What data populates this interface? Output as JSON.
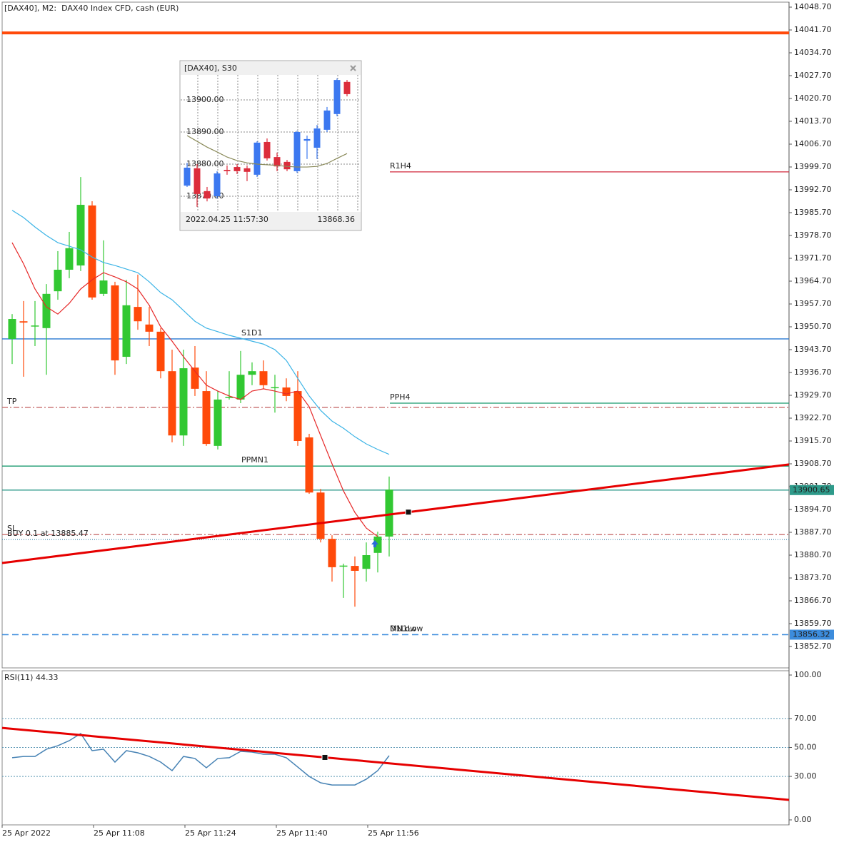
{
  "chart_data": [
    {
      "type": "candlestick",
      "title": "[DAX40], M2:  DAX40 Index CFD, cash (EUR)",
      "categories": [
        "25 Apr 2022",
        null,
        null,
        null,
        null,
        null,
        null,
        null,
        "25 Apr 11:08",
        null,
        null,
        null,
        null,
        null,
        null,
        null,
        "25 Apr 11:24",
        null,
        null,
        null,
        null,
        null,
        null,
        null,
        "25 Apr 11:40",
        null,
        null,
        null,
        null,
        null,
        null,
        null,
        "25 Apr 11:56",
        null
      ],
      "ohlc": {
        "open": [
          13947.0,
          13952.4,
          13950.9,
          13950.3,
          13961.6,
          13968.2,
          13969.5,
          13987.9,
          13960.8,
          13963.4,
          13941.5,
          13956.8,
          13951.4,
          13949.2,
          13937.1,
          13917.4,
          13938.2,
          13931.0,
          13914.2,
          13929.0,
          13928.4,
          13936.0,
          13937.1,
          13932.1,
          13932.1,
          13931.0,
          13916.8,
          13899.9,
          13885.7,
          13877.4,
          13877.4,
          13876.5,
          13881.4,
          13886.4
        ],
        "high": [
          13954.6,
          13958.6,
          13958.6,
          13963.8,
          13973.9,
          13979.8,
          13996.6,
          13989.2,
          13977.2,
          13964.5,
          13965.1,
          13966.7,
          13956.8,
          13950.3,
          13943.7,
          13943.7,
          13944.8,
          13937.1,
          13931.0,
          13937.1,
          13943.3,
          13939.8,
          13940.4,
          13936.0,
          13934.9,
          13937.1,
          13917.9,
          13901.0,
          13886.8,
          13878.1,
          13880.3,
          13884.6,
          13887.9,
          13904.8
        ],
        "low": [
          13939.3,
          13935.4,
          13944.8,
          13936.0,
          13959.0,
          13965.6,
          13967.8,
          13959.0,
          13960.1,
          13936.0,
          13939.3,
          13949.8,
          13944.8,
          13934.9,
          13915.3,
          13914.2,
          13929.5,
          13914.2,
          13913.1,
          13928.4,
          13927.3,
          13932.8,
          13931.7,
          13924.4,
          13927.9,
          13914.2,
          13899.5,
          13884.6,
          13872.6,
          13867.6,
          13864.9,
          13872.6,
          13875.4,
          13880.3
        ],
        "close": [
          13953.1,
          13952.0,
          13951.1,
          13960.8,
          13968.2,
          13974.8,
          13988.1,
          13959.7,
          13964.9,
          13940.4,
          13957.3,
          13952.4,
          13949.2,
          13937.1,
          13917.4,
          13938.0,
          13931.7,
          13914.8,
          13928.4,
          13929.2,
          13936.0,
          13937.1,
          13932.8,
          13932.2,
          13929.5,
          13915.7,
          13899.9,
          13885.7,
          13877.0,
          13877.5,
          13875.9,
          13880.7,
          13886.4,
          13900.8
        ],
        "up_color": "#32c832",
        "down_color": "#ff4a0a"
      },
      "lines": [
        {
          "color": "#e62828",
          "values": [
            13976.5,
            13970.0,
            13962.3,
            13956.8,
            13954.6,
            13957.9,
            13962.3,
            13965.1,
            13967.3,
            13966.0,
            13964.5,
            13962.3,
            13957.3,
            13950.7,
            13946.3,
            13941.5,
            13937.1,
            13932.8,
            13931.0,
            13929.5,
            13928.4,
            13931.0,
            13931.7,
            13931.0,
            13930.1,
            13931.0,
            13926.2,
            13917.4,
            13908.7,
            13900.4,
            13893.8,
            13889.0,
            13886.4,
            null
          ]
        },
        {
          "color": "#3cb4e6",
          "values": [
            13986.4,
            13984.2,
            13981.3,
            13978.7,
            13976.5,
            13975.4,
            13974.3,
            13972.1,
            13970.4,
            13969.5,
            13968.4,
            13967.3,
            13964.5,
            13961.2,
            13959.0,
            13955.7,
            13952.4,
            13950.3,
            13949.2,
            13948.1,
            13947.2,
            13946.3,
            13945.4,
            13943.7,
            13940.4,
            13934.9,
            13929.5,
            13925.1,
            13921.8,
            13919.6,
            13917.0,
            13914.8,
            13913.1,
            13911.6
          ]
        }
      ],
      "levels": [
        {
          "value": 14040.8,
          "color": "#ff4a0a",
          "width": 4,
          "style": "solid"
        },
        {
          "label": "R1H4",
          "value": 13998.2,
          "color": "#d2283c",
          "style": "solid",
          "extent": "right"
        },
        {
          "label": "S1D1",
          "value": 13947.0,
          "color": "#2878d2",
          "style": "solid"
        },
        {
          "label": "PPH4",
          "value": 13927.3,
          "color": "#199a6e",
          "style": "solid",
          "extent": "right"
        },
        {
          "label": "TP",
          "value": 13926.0,
          "color": "#c86e6e",
          "style": "dashdot"
        },
        {
          "label": "PPMN1",
          "value": 13908.0,
          "color": "#199a6e",
          "style": "solid"
        },
        {
          "label": "SL",
          "value": 13887.0,
          "color": "#c86e6e",
          "style": "dashdot"
        },
        {
          "label": "BUY 0.1 at 13885.47",
          "value": 13885.47,
          "color": "#5a96b4",
          "style": "dotted"
        },
        {
          "value": 13900.65,
          "color": "#2e9a8a",
          "style": "solid",
          "tag": true
        },
        {
          "label": "D1Low",
          "value": 13856.32,
          "color": "#3c8cdc",
          "style": "dashed",
          "tag": true
        },
        {
          "label": "MN1Low",
          "value": 13856.32,
          "color": "#3c8cdc",
          "style": "dashed"
        }
      ],
      "trendline": {
        "values": [
          13878.3,
          13908.5
        ],
        "color": "#e60000"
      },
      "ylim": [
        13846.14,
        14050.23
      ],
      "yticks": [
        {
          "value": 14048.7,
          "label": "14048.70"
        },
        {
          "value": 14041.7,
          "label": "14041.70"
        },
        {
          "value": 14034.7,
          "label": "14034.70"
        },
        {
          "value": 14027.7,
          "label": "14027.70"
        },
        {
          "value": 14020.7,
          "label": "14020.70"
        },
        {
          "value": 14013.7,
          "label": "14013.70"
        },
        {
          "value": 14006.7,
          "label": "14006.70"
        },
        {
          "value": 13999.7,
          "label": "13999.70"
        },
        {
          "value": 13992.7,
          "label": "13992.70"
        },
        {
          "value": 13985.7,
          "label": "13985.70"
        },
        {
          "value": 13978.7,
          "label": "13978.70"
        },
        {
          "value": 13971.7,
          "label": "13971.70"
        },
        {
          "value": 13964.7,
          "label": "13964.70"
        },
        {
          "value": 13957.7,
          "label": "13957.70"
        },
        {
          "value": 13950.7,
          "label": "13950.70"
        },
        {
          "value": 13943.7,
          "label": "13943.70"
        },
        {
          "value": 13936.7,
          "label": "13936.70"
        },
        {
          "value": 13929.7,
          "label": "13929.70"
        },
        {
          "value": 13922.7,
          "label": "13922.70"
        },
        {
          "value": 13915.7,
          "label": "13915.70"
        },
        {
          "value": 13908.7,
          "label": "13908.70"
        },
        {
          "value": 13901.7,
          "label": "13901.70"
        },
        {
          "value": 13894.7,
          "label": "13894.70"
        },
        {
          "value": 13887.7,
          "label": "13887.70"
        },
        {
          "value": 13880.7,
          "label": "13880.70"
        },
        {
          "value": 13873.7,
          "label": "13873.70"
        },
        {
          "value": 13866.7,
          "label": "13866.70"
        },
        {
          "value": 13859.7,
          "label": "13859.70"
        },
        {
          "value": 13852.7,
          "label": "13852.70"
        }
      ]
    },
    {
      "type": "line",
      "title": "RSI(11) 44.33",
      "values": [
        42.9,
        43.8,
        43.8,
        48.8,
        51.2,
        54.7,
        59.6,
        47.8,
        48.8,
        39.9,
        47.8,
        46.3,
        43.8,
        39.9,
        34.0,
        43.8,
        42.4,
        36.0,
        42.4,
        42.9,
        47.3,
        46.8,
        45.3,
        45.3,
        42.9,
        36.5,
        30.0,
        25.6,
        24.1,
        24.1,
        24.1,
        28.1,
        34.0,
        44.33
      ],
      "color": "#4682b4",
      "levels": [
        70,
        50,
        30
      ],
      "trendline": {
        "values": [
          63.5,
          13.8
        ],
        "color": "#e60000"
      },
      "ylim": [
        -3.45,
        102.96
      ],
      "yticks": [
        {
          "value": 100,
          "label": "100.00"
        },
        {
          "value": 70,
          "label": "70.00"
        },
        {
          "value": 50,
          "label": "50.00"
        },
        {
          "value": 30,
          "label": "30.00"
        },
        {
          "value": 0,
          "label": "0.00"
        }
      ]
    },
    {
      "type": "candlestick",
      "title": "[DAX40], S30",
      "ohlc": {
        "open": [
          13873.3,
          13878.7,
          13871.6,
          13870.0,
          13878.2,
          13879.1,
          13878.7,
          13876.7,
          13886.9,
          13882.2,
          13880.7,
          13877.8,
          13887.3,
          13885.1,
          13890.7,
          13895.6,
          13905.6
        ],
        "high": [
          13880.4,
          13880.0,
          13872.9,
          13877.8,
          13879.6,
          13880.0,
          13879.6,
          13887.1,
          13888.0,
          13883.6,
          13881.3,
          13890.4,
          13888.9,
          13892.2,
          13897.8,
          13906.7,
          13906.2
        ],
        "low": [
          13872.9,
          13866.7,
          13868.4,
          13869.3,
          13876.7,
          13876.9,
          13874.7,
          13876.0,
          13881.1,
          13877.8,
          13877.8,
          13877.3,
          13881.6,
          13881.6,
          13890.0,
          13894.9,
          13901.1
        ],
        "close": [
          13878.9,
          13870.7,
          13869.3,
          13877.1,
          13877.8,
          13877.8,
          13877.6,
          13886.7,
          13881.8,
          13879.3,
          13878.4,
          13890.0,
          13887.8,
          13891.1,
          13896.7,
          13906.2,
          13901.8
        ],
        "up_color": "#3c78f0",
        "down_color": "#dc2d3c"
      },
      "lines": [
        {
          "color": "#8a8a5a",
          "values": [
            13888.9,
            13887.1,
            13885.3,
            13883.8,
            13882.2,
            13881.1,
            13880.4,
            13880.0,
            13879.8,
            13879.6,
            13879.3,
            13879.1,
            13879.1,
            13879.3,
            13880.2,
            13881.8,
            13883.3
          ]
        }
      ],
      "ylim": [
        13865.56,
        13907.78
      ],
      "yticks": [
        {
          "value": 13900,
          "label": "13900.00"
        },
        {
          "value": 13890,
          "label": "13890.00"
        },
        {
          "value": 13880,
          "label": "13880.00"
        },
        {
          "value": 13870,
          "label": "13870.00"
        }
      ],
      "time": "2022.04.25 11:57:30",
      "price": 13868.36
    }
  ]
}
